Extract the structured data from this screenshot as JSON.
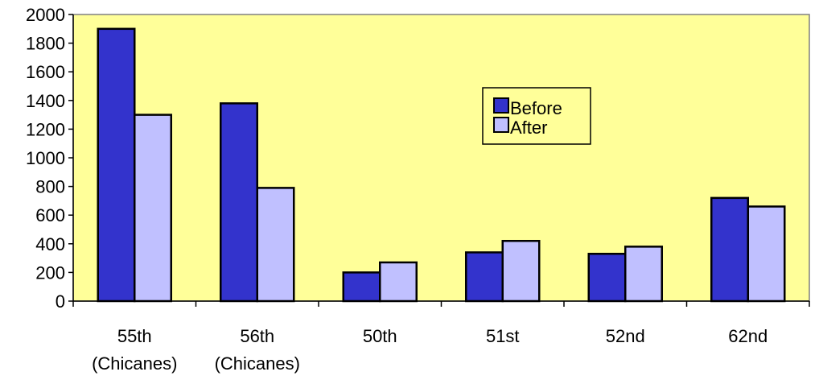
{
  "chart_data": {
    "type": "bar",
    "title": "",
    "xlabel": "",
    "ylabel": "",
    "categories": [
      [
        "55th",
        "(Chicanes)"
      ],
      [
        "56th",
        "(Chicanes)"
      ],
      [
        "50th"
      ],
      [
        "51st"
      ],
      [
        "52nd"
      ],
      [
        "62nd"
      ]
    ],
    "series": [
      {
        "name": "Before",
        "values": [
          1900,
          1380,
          200,
          340,
          330,
          720
        ],
        "color": "#3333cc"
      },
      {
        "name": "After",
        "values": [
          1300,
          790,
          270,
          420,
          380,
          660
        ],
        "color": "#c0c0ff"
      }
    ],
    "ylim": [
      0,
      2000
    ],
    "yticks": [
      0,
      200,
      400,
      600,
      800,
      1000,
      1200,
      1400,
      1600,
      1800,
      2000
    ],
    "plot_background": "#ffff99",
    "legend_position": "upper-right-center",
    "grid": false
  }
}
